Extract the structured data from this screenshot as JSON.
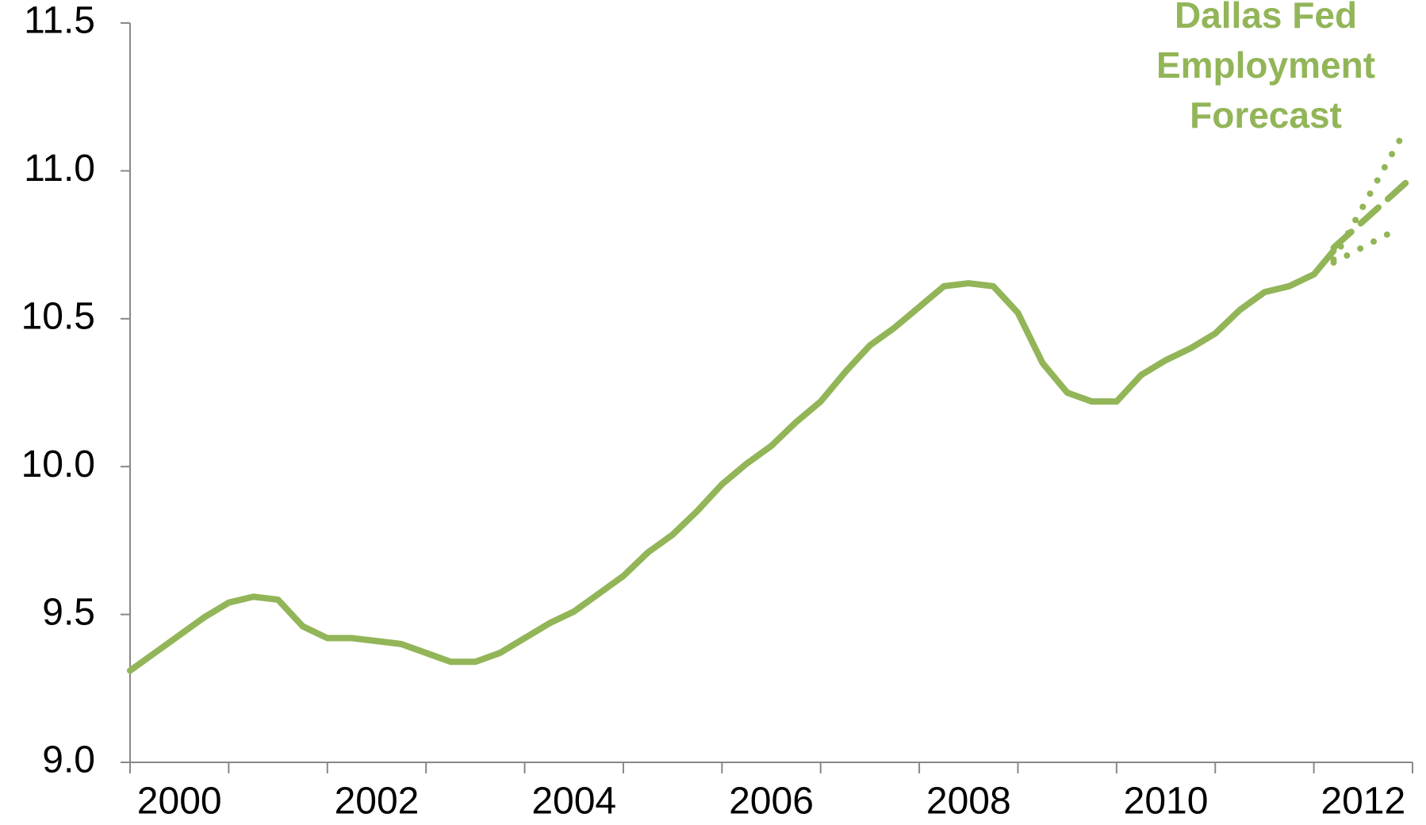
{
  "chart_data": {
    "type": "line",
    "annotation": [
      "Dallas Fed",
      "Employment",
      "Forecast"
    ],
    "xlim": [
      2000,
      2013
    ],
    "xticks": [
      2000,
      2001,
      2002,
      2003,
      2004,
      2005,
      2006,
      2007,
      2008,
      2009,
      2010,
      2011,
      2012,
      2013
    ],
    "xtick_labels": [
      {
        "value": 2000.5,
        "label": "2000"
      },
      {
        "value": 2002.5,
        "label": "2002"
      },
      {
        "value": 2004.5,
        "label": "2004"
      },
      {
        "value": 2006.5,
        "label": "2006"
      },
      {
        "value": 2008.5,
        "label": "2008"
      },
      {
        "value": 2010.5,
        "label": "2010"
      },
      {
        "value": 2012.5,
        "label": "2012"
      }
    ],
    "ylim": [
      9.0,
      11.5
    ],
    "yticks": [
      {
        "value": 9.0,
        "label": "9.0"
      },
      9.5,
      {
        "value": 10.0,
        "label": "10.0"
      },
      10.5,
      {
        "value": 11.0,
        "label": "11.0"
      },
      11.5
    ],
    "series": [
      {
        "color": "#92b558",
        "style": "solid",
        "x": [
          2000.0,
          2000.25,
          2000.5,
          2000.75,
          2001.0,
          2001.25,
          2001.5,
          2001.75,
          2002.0,
          2002.25,
          2002.5,
          2002.75,
          2003.0,
          2003.25,
          2003.5,
          2003.75,
          2004.0,
          2004.25,
          2004.5,
          2004.75,
          2005.0,
          2005.25,
          2005.5,
          2005.75,
          2006.0,
          2006.25,
          2006.5,
          2006.75,
          2007.0,
          2007.25,
          2007.5,
          2007.75,
          2008.0,
          2008.25,
          2008.5,
          2008.75,
          2009.0,
          2009.25,
          2009.5,
          2009.75,
          2010.0,
          2010.25,
          2010.5,
          2010.75,
          2011.0,
          2011.25,
          2011.5,
          2011.75,
          2012.0,
          2012.2
        ],
        "values": [
          9.31,
          9.37,
          9.43,
          9.49,
          9.54,
          9.56,
          9.55,
          9.46,
          9.42,
          9.42,
          9.41,
          9.4,
          9.37,
          9.34,
          9.34,
          9.37,
          9.42,
          9.47,
          9.51,
          9.57,
          9.63,
          9.71,
          9.77,
          9.85,
          9.94,
          10.01,
          10.07,
          10.15,
          10.22,
          10.32,
          10.41,
          10.47,
          10.54,
          10.61,
          10.62,
          10.61,
          10.52,
          10.35,
          10.25,
          10.22,
          10.22,
          10.31,
          10.36,
          10.4,
          10.45,
          10.53,
          10.59,
          10.61,
          10.65,
          10.73
        ]
      },
      {
        "color": "#92b558",
        "style": "dashed",
        "x": [
          2012.2,
          2013.0
        ],
        "values": [
          10.74,
          10.98
        ]
      },
      {
        "color": "#92b558",
        "style": "dotted",
        "x": [
          2012.2,
          2012.88
        ],
        "values": [
          10.7,
          11.11
        ]
      },
      {
        "color": "#92b558",
        "style": "dotted",
        "x": [
          2012.2,
          2012.83
        ],
        "values": [
          10.69,
          10.8
        ]
      }
    ]
  }
}
